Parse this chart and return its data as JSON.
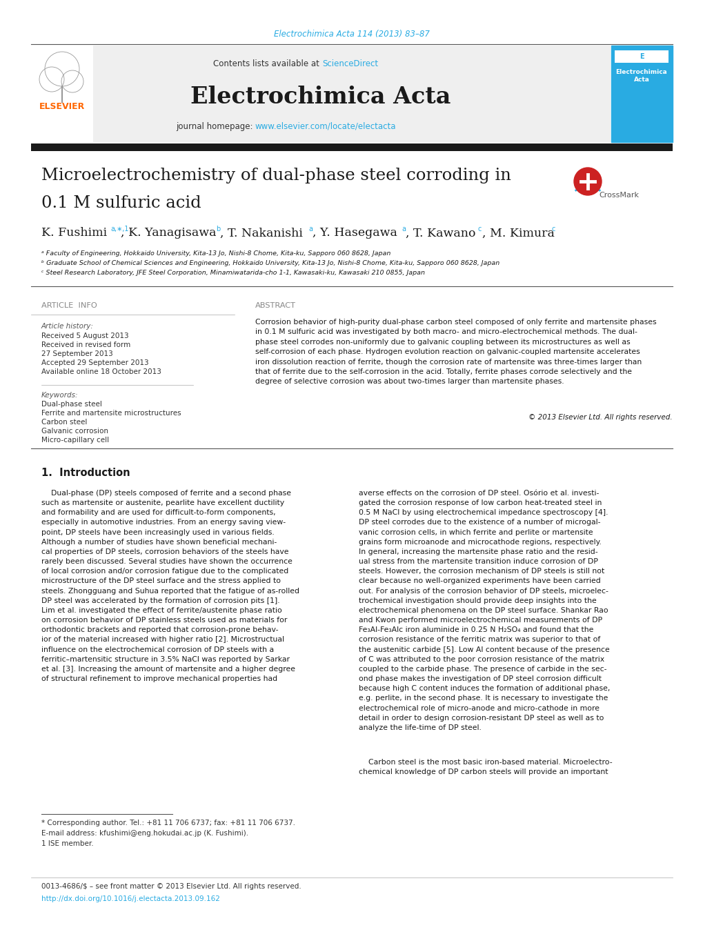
{
  "page_color": "#ffffff",
  "header_url_color": "#29ABE2",
  "header_url_text": "Electrochimica Acta 114 (2013) 83–87",
  "journal_banner_bg": "#f0f0f0",
  "journal_banner_text": "Electrochimica Acta",
  "sciencedirect_color": "#29ABE2",
  "journal_homepage_url_color": "#29ABE2",
  "elsevier_color": "#FF6600",
  "dark_bar_color": "#1a1a1a",
  "affil_a": "ᵃ Faculty of Engineering, Hokkaido University, Kita-13 Jo, Nishi-8 Chome, Kita-ku, Sapporo 060 8628, Japan",
  "affil_b": "ᵇ Graduate School of Chemical Sciences and Engineering, Hokkaido University, Kita-13 Jo, Nishi-8 Chome, Kita-ku, Sapporo 060 8628, Japan",
  "affil_c": "ᶜ Steel Research Laboratory, JFE Steel Corporation, Minamiwatarida-cho 1-1, Kawasaki-ku, Kawasaki 210 0855, Japan",
  "article_info_label": "ARTICLE  INFO",
  "abstract_label": "ABSTRACT",
  "article_history_label": "Article history:",
  "received1": "Received 5 August 2013",
  "received2": "Received in revised form",
  "received3": "27 September 2013",
  "accepted": "Accepted 29 September 2013",
  "available": "Available online 18 October 2013",
  "keywords_label": "Keywords:",
  "keyword1": "Dual-phase steel",
  "keyword2": "Ferrite and martensite microstructures",
  "keyword3": "Carbon steel",
  "keyword4": "Galvanic corrosion",
  "keyword5": "Micro-capillary cell",
  "copyright_text": "© 2013 Elsevier Ltd. All rights reserved.",
  "intro_heading": "1.  Introduction",
  "footnote_star": "* Corresponding author. Tel.: +81 11 706 6737; fax: +81 11 706 6737.",
  "footnote_email": "E-mail address: kfushimi@eng.hokudai.ac.jp (K. Fushimi).",
  "footnote_1": "1 ISE member.",
  "bottom_text1": "0013-4686/$ – see front matter © 2013 Elsevier Ltd. All rights reserved.",
  "bottom_text2": "http://dx.doi.org/10.1016/j.electacta.2013.09.162",
  "bottom_url_color": "#29ABE2"
}
